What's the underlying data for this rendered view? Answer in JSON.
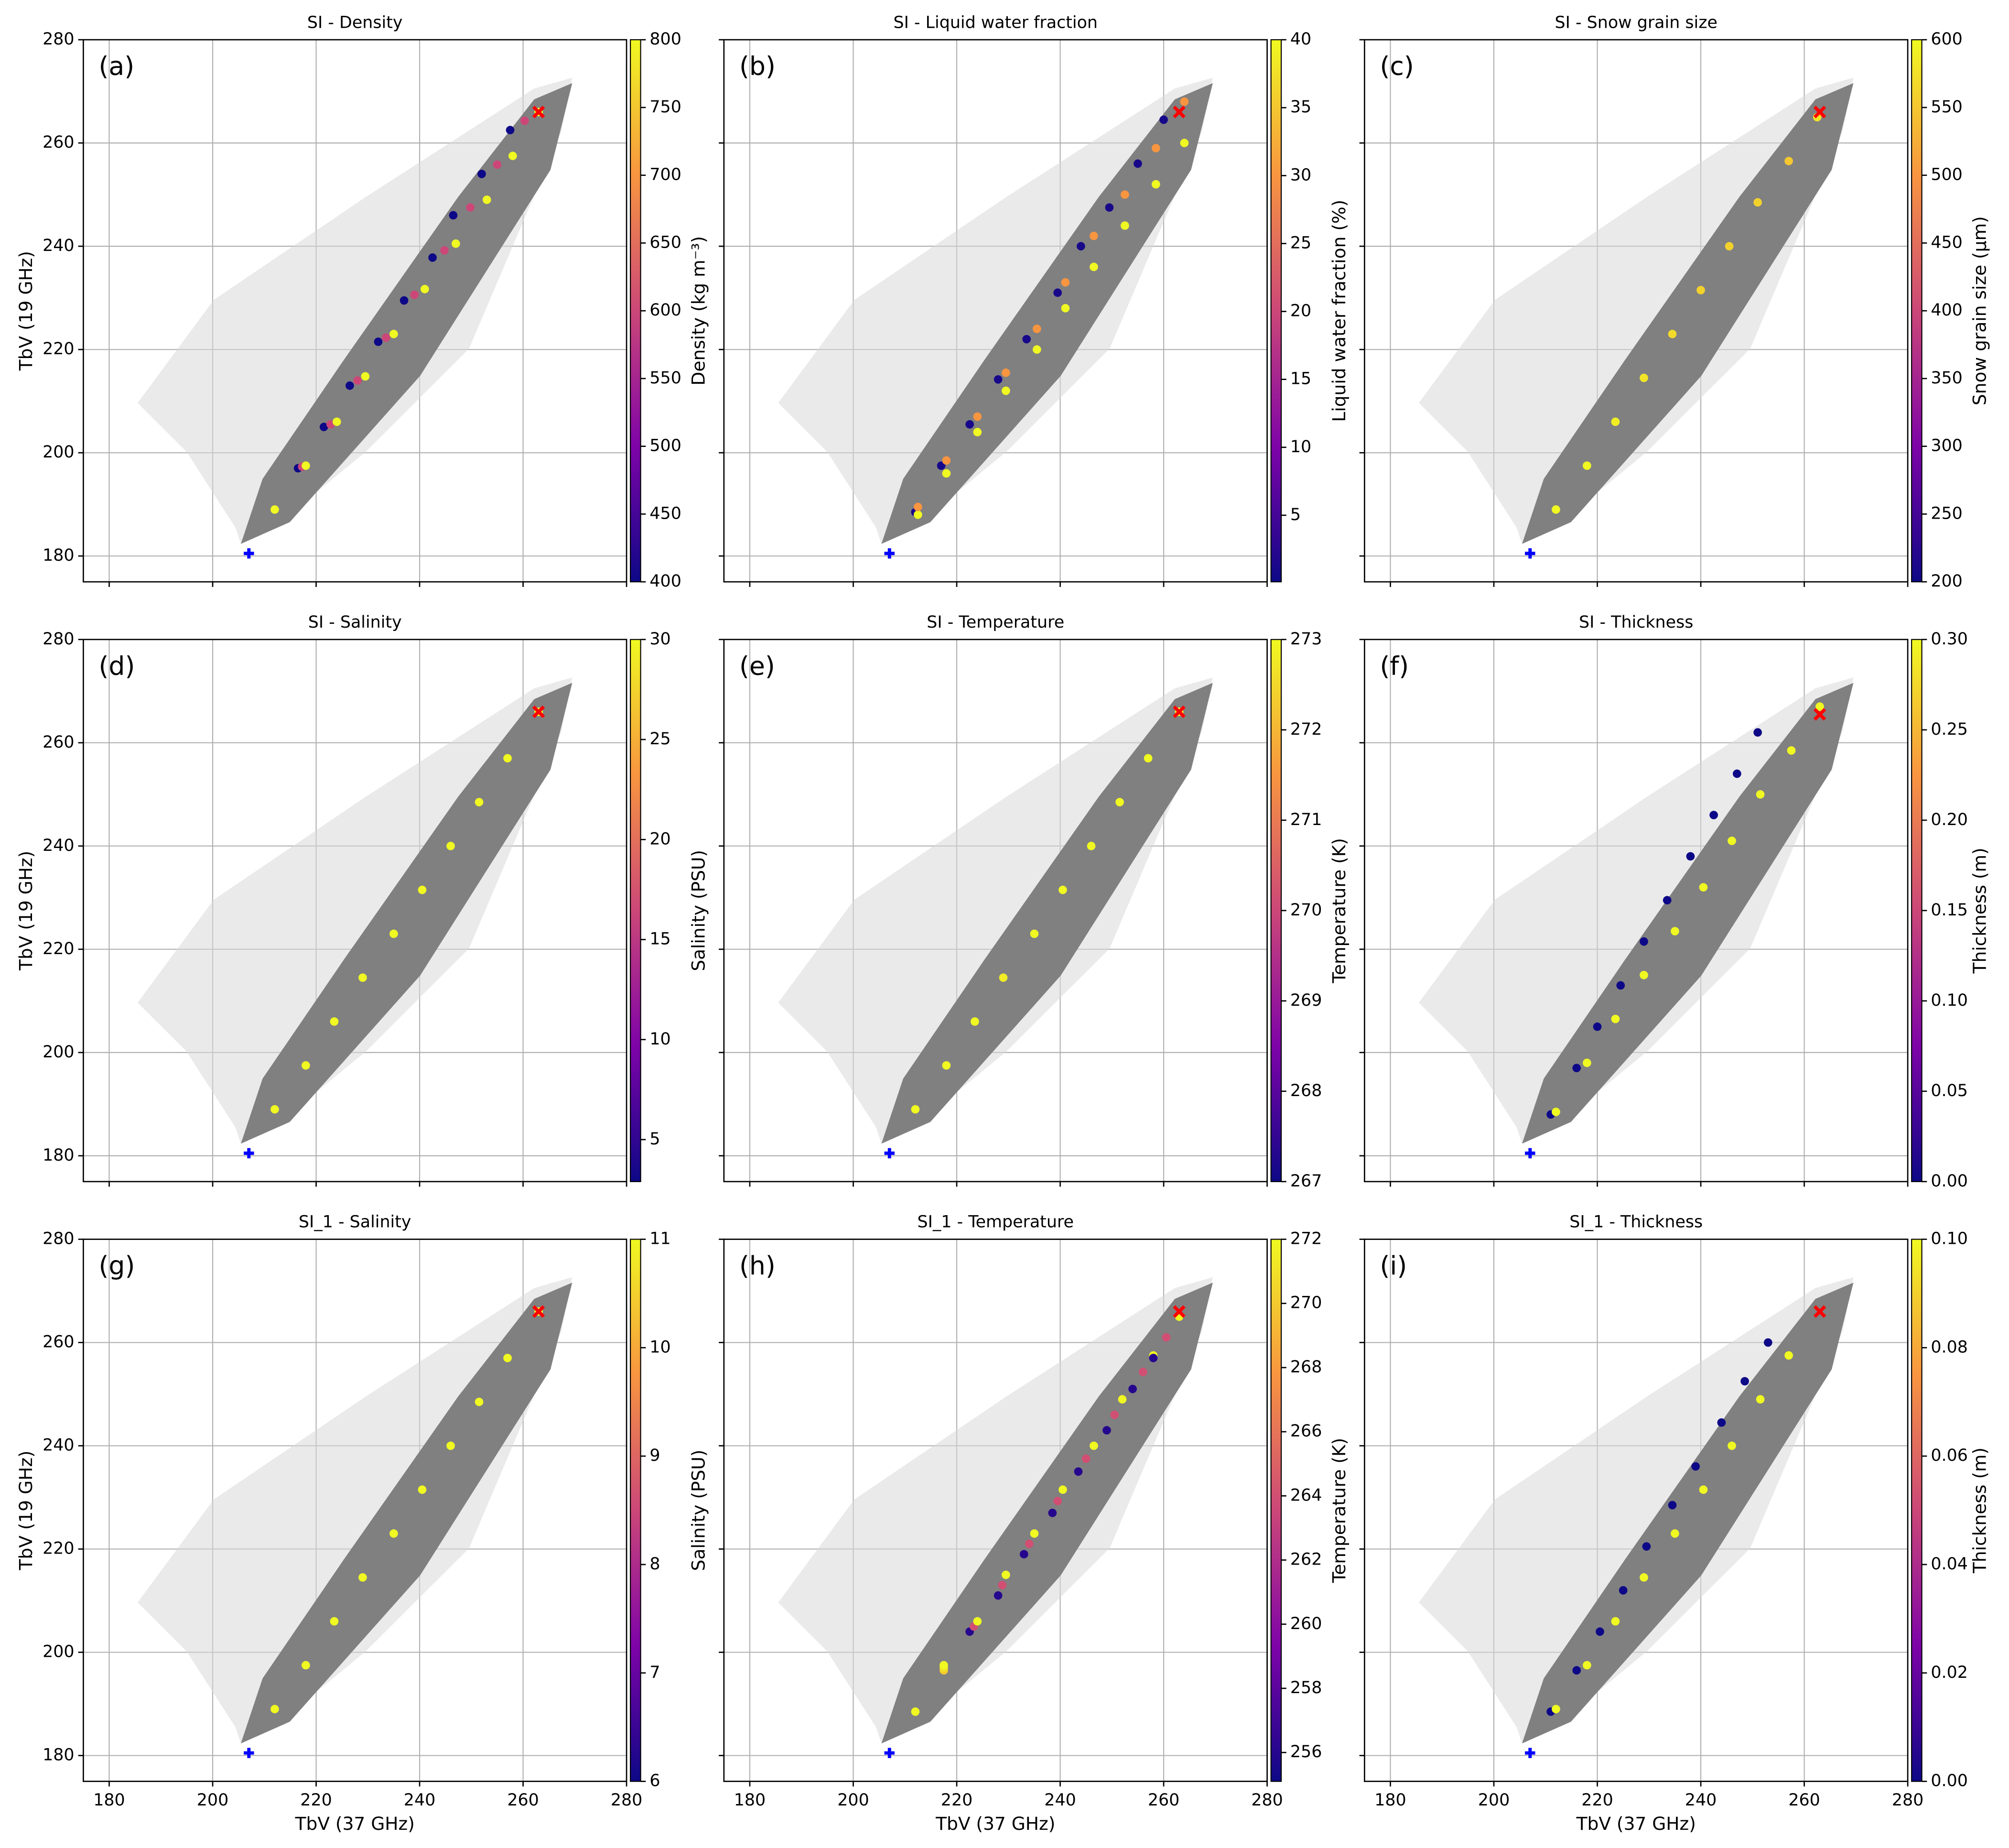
{
  "chart_data": [
    {
      "type": "scatter",
      "title": "SI - Density",
      "panel_label": "(a)",
      "ylabel": "TbV (19 GHz)",
      "xlim": [
        175,
        280
      ],
      "ylim": [
        175,
        280
      ],
      "xticks": [
        180,
        200,
        220,
        240,
        260,
        280
      ],
      "yticks": [
        180,
        200,
        220,
        240,
        260,
        280
      ],
      "xtick_labels": false,
      "ytick_labels": true,
      "grid": true,
      "x": [
        212,
        216.5,
        217.3,
        218,
        221.5,
        222.8,
        224,
        226.5,
        228,
        229.5,
        232,
        233.5,
        235,
        237,
        239,
        241,
        242.5,
        244.8,
        247,
        246.5,
        249.8,
        253,
        252,
        255,
        258,
        257.5,
        260.3,
        263
      ],
      "y": [
        189,
        197,
        197.3,
        197.5,
        205,
        205.5,
        206,
        213,
        214,
        214.8,
        221.5,
        222.3,
        223,
        229.5,
        230.6,
        231.7,
        237.8,
        239.2,
        240.5,
        246,
        247.5,
        249,
        254,
        255.8,
        257.5,
        262.5,
        264.3,
        266
      ],
      "c": [
        800,
        400,
        600,
        800,
        400,
        600,
        800,
        400,
        600,
        800,
        400,
        600,
        800,
        400,
        600,
        800,
        400,
        600,
        800,
        400,
        600,
        800,
        400,
        600,
        800,
        400,
        600,
        800
      ],
      "colorbar": {
        "label": "Density (kg m⁻³)",
        "colormap": "plasma",
        "lim": [
          400,
          800
        ],
        "ticks": [
          400,
          450,
          500,
          550,
          600,
          650,
          700,
          750,
          800
        ]
      },
      "reference_points": [
        {
          "x": 263,
          "y": 266,
          "marker": "x",
          "color": "red"
        },
        {
          "x": 207,
          "y": 180.5,
          "marker": "plus",
          "color": "blue"
        }
      ]
    },
    {
      "type": "scatter",
      "title": "SI - Liquid water fraction",
      "panel_label": "(b)",
      "xlim": [
        175,
        280
      ],
      "ylim": [
        175,
        280
      ],
      "xticks": [
        180,
        200,
        220,
        240,
        260,
        280
      ],
      "yticks": [
        180,
        200,
        220,
        240,
        260,
        280
      ],
      "xtick_labels": false,
      "ytick_labels": false,
      "grid": true,
      "x": [
        212,
        212.5,
        212.5,
        217,
        218,
        218,
        222.5,
        224,
        224,
        228,
        229.5,
        229.5,
        233.5,
        235.5,
        235.5,
        239.5,
        241,
        241,
        244,
        246.5,
        246.5,
        249.5,
        252.5,
        252.5,
        255,
        258.5,
        258.5,
        260,
        264,
        264
      ],
      "y": [
        188.5,
        188,
        189.5,
        197.5,
        196,
        198.5,
        205.5,
        204,
        207,
        214.2,
        212,
        215.5,
        222,
        220,
        224,
        231,
        228,
        233,
        240,
        236,
        242,
        247.5,
        244,
        250,
        256,
        252,
        259,
        264.5,
        260,
        268
      ],
      "c": [
        1,
        40,
        30,
        1,
        40,
        30,
        1,
        40,
        30,
        1,
        40,
        30,
        1,
        40,
        30,
        1,
        40,
        30,
        1,
        40,
        30,
        1,
        40,
        30,
        1,
        40,
        30,
        1,
        40,
        30
      ],
      "colorbar": {
        "label": "Liquid water fraction (%)",
        "colormap": "plasma",
        "lim": [
          0.1,
          40
        ],
        "ticks": [
          5,
          10,
          15,
          20,
          25,
          30,
          35,
          40
        ]
      },
      "reference_points": [
        {
          "x": 263,
          "y": 266,
          "marker": "x",
          "color": "red"
        },
        {
          "x": 207,
          "y": 180.5,
          "marker": "plus",
          "color": "blue"
        }
      ]
    },
    {
      "type": "scatter",
      "title": "SI - Snow grain size",
      "panel_label": "(c)",
      "xlim": [
        175,
        280
      ],
      "ylim": [
        175,
        280
      ],
      "xticks": [
        180,
        200,
        220,
        240,
        260,
        280
      ],
      "yticks": [
        180,
        200,
        220,
        240,
        260,
        280
      ],
      "xtick_labels": false,
      "ytick_labels": false,
      "grid": true,
      "x": [
        212,
        218,
        223.5,
        229,
        234.5,
        240,
        245.5,
        251,
        257,
        262.5
      ],
      "y": [
        189,
        197.5,
        206,
        214.5,
        223,
        231.5,
        240,
        248.5,
        256.5,
        265
      ],
      "c": [
        600,
        600,
        590,
        580,
        570,
        560,
        560,
        560,
        550,
        580
      ],
      "colorbar": {
        "label": "Snow grain size (µm)",
        "colormap": "plasma",
        "lim": [
          200,
          600
        ],
        "ticks": [
          200,
          250,
          300,
          350,
          400,
          450,
          500,
          550,
          600
        ]
      },
      "reference_points": [
        {
          "x": 263,
          "y": 266,
          "marker": "x",
          "color": "red"
        },
        {
          "x": 207,
          "y": 180.5,
          "marker": "plus",
          "color": "blue"
        }
      ]
    },
    {
      "type": "scatter",
      "title": "SI - Salinity",
      "panel_label": "(d)",
      "ylabel": "TbV (19 GHz)",
      "xlim": [
        175,
        280
      ],
      "ylim": [
        175,
        280
      ],
      "xticks": [
        180,
        200,
        220,
        240,
        260,
        280
      ],
      "yticks": [
        180,
        200,
        220,
        240,
        260,
        280
      ],
      "xtick_labels": false,
      "ytick_labels": true,
      "grid": true,
      "x": [
        212,
        218,
        223.5,
        229,
        235,
        240.5,
        246,
        251.5,
        257,
        263
      ],
      "y": [
        189,
        197.5,
        206,
        214.5,
        223,
        231.5,
        240,
        248.5,
        257,
        266
      ],
      "c": [
        30,
        30,
        30,
        30,
        30,
        30,
        30,
        30,
        30,
        30
      ],
      "colorbar": {
        "label": "Salinity (PSU)",
        "colormap": "plasma",
        "lim": [
          2.9,
          30
        ],
        "ticks": [
          5,
          10,
          15,
          20,
          25,
          30
        ]
      },
      "reference_points": [
        {
          "x": 263,
          "y": 266,
          "marker": "x",
          "color": "red"
        },
        {
          "x": 207,
          "y": 180.5,
          "marker": "plus",
          "color": "blue"
        }
      ]
    },
    {
      "type": "scatter",
      "title": "SI - Temperature",
      "panel_label": "(e)",
      "xlim": [
        175,
        280
      ],
      "ylim": [
        175,
        280
      ],
      "xticks": [
        180,
        200,
        220,
        240,
        260,
        280
      ],
      "yticks": [
        180,
        200,
        220,
        240,
        260,
        280
      ],
      "xtick_labels": false,
      "ytick_labels": false,
      "grid": true,
      "x": [
        212,
        218,
        223.5,
        229,
        235,
        240.5,
        246,
        251.5,
        257,
        263
      ],
      "y": [
        189,
        197.5,
        206,
        214.5,
        223,
        231.5,
        240,
        248.5,
        257,
        266
      ],
      "c": [
        273,
        273,
        273,
        272.8,
        273,
        273,
        273,
        273,
        273,
        273
      ],
      "colorbar": {
        "label": "Temperature (K)",
        "colormap": "plasma",
        "lim": [
          267,
          273
        ],
        "ticks": [
          267,
          268,
          269,
          270,
          271,
          272,
          273
        ]
      },
      "reference_points": [
        {
          "x": 263,
          "y": 266,
          "marker": "x",
          "color": "red"
        },
        {
          "x": 207,
          "y": 180.5,
          "marker": "plus",
          "color": "blue"
        }
      ]
    },
    {
      "type": "scatter",
      "title": "SI - Thickness",
      "panel_label": "(f)",
      "xlim": [
        175,
        280
      ],
      "ylim": [
        175,
        280
      ],
      "xticks": [
        180,
        200,
        220,
        240,
        260,
        280
      ],
      "yticks": [
        180,
        200,
        220,
        240,
        260,
        280
      ],
      "xtick_labels": false,
      "ytick_labels": false,
      "grid": true,
      "x": [
        211,
        216,
        220,
        224.5,
        229,
        233.5,
        238,
        242.5,
        247,
        251,
        212,
        218,
        223.5,
        229,
        235,
        240.5,
        246,
        251.5,
        257.5,
        263
      ],
      "y": [
        188,
        197,
        205,
        213,
        221.5,
        229.5,
        238,
        246,
        254,
        262,
        188.5,
        198,
        206.5,
        215,
        223.5,
        232,
        241,
        250,
        258.5,
        267
      ],
      "c": [
        0,
        0,
        0,
        0,
        0,
        0,
        0,
        0,
        0,
        0,
        0.3,
        0.3,
        0.3,
        0.3,
        0.3,
        0.3,
        0.3,
        0.3,
        0.3,
        0.3
      ],
      "colorbar": {
        "label": "Thickness (m)",
        "colormap": "plasma",
        "lim": [
          0,
          0.3
        ],
        "ticks": [
          {
            "value": 0,
            "label": "0.00"
          },
          {
            "value": 0.05,
            "label": "0.05"
          },
          {
            "value": 0.1,
            "label": "0.10"
          },
          {
            "value": 0.15,
            "label": "0.15"
          },
          {
            "value": 0.2,
            "label": "0.20"
          },
          {
            "value": 0.25,
            "label": "0.25"
          },
          {
            "value": 0.3,
            "label": "0.30"
          }
        ]
      },
      "reference_points": [
        {
          "x": 263,
          "y": 265.5,
          "marker": "x",
          "color": "red"
        },
        {
          "x": 207,
          "y": 180.5,
          "marker": "plus",
          "color": "blue"
        }
      ]
    },
    {
      "type": "scatter",
      "title": "SI_1 - Salinity",
      "panel_label": "(g)",
      "xlabel": "TbV (37 GHz)",
      "ylabel": "TbV (19 GHz)",
      "xlim": [
        175,
        280
      ],
      "ylim": [
        175,
        280
      ],
      "xticks": [
        180,
        200,
        220,
        240,
        260,
        280
      ],
      "yticks": [
        180,
        200,
        220,
        240,
        260,
        280
      ],
      "xtick_labels": true,
      "ytick_labels": true,
      "grid": true,
      "x": [
        212,
        218,
        223.5,
        229,
        235,
        240.5,
        246,
        251.5,
        257,
        263
      ],
      "y": [
        189,
        197.5,
        206,
        214.5,
        223,
        231.5,
        240,
        248.5,
        257,
        266
      ],
      "c": [
        11,
        11,
        11,
        11,
        11,
        11,
        11,
        11,
        11,
        11
      ],
      "colorbar": {
        "label": "Salinity (PSU)",
        "colormap": "plasma",
        "lim": [
          6,
          11
        ],
        "ticks": [
          6,
          7,
          8,
          9,
          10,
          11
        ]
      },
      "reference_points": [
        {
          "x": 263,
          "y": 266,
          "marker": "x",
          "color": "red"
        },
        {
          "x": 207,
          "y": 180.5,
          "marker": "plus",
          "color": "blue"
        }
      ]
    },
    {
      "type": "scatter",
      "title": "SI_1 - Temperature",
      "panel_label": "(h)",
      "xlabel": "TbV (37 GHz)",
      "xlim": [
        175,
        280
      ],
      "ylim": [
        175,
        280
      ],
      "xticks": [
        180,
        200,
        220,
        240,
        260,
        280
      ],
      "yticks": [
        180,
        200,
        220,
        240,
        260,
        280
      ],
      "xtick_labels": true,
      "ytick_labels": false,
      "grid": true,
      "x": [
        212,
        217.5,
        217.5,
        217.5,
        222.5,
        223.3,
        224,
        228,
        228.8,
        229.5,
        233,
        234,
        235,
        238.5,
        239.5,
        240.5,
        243.5,
        245,
        246.5,
        249,
        250.5,
        252,
        254,
        256,
        258,
        258,
        260.5,
        263
      ],
      "y": [
        188.5,
        196.5,
        197,
        197.5,
        204,
        205,
        206,
        211,
        213,
        215,
        219,
        221,
        223,
        227,
        229.3,
        231.5,
        235,
        237.5,
        240,
        243,
        246,
        249,
        251,
        254.3,
        257.5,
        257,
        261,
        265
      ],
      "c": [
        272,
        270,
        271,
        272,
        256,
        264,
        272,
        256,
        264,
        272,
        256,
        264,
        272,
        256,
        264,
        272,
        256,
        264,
        272,
        256,
        264,
        272,
        256,
        264,
        272,
        256,
        264,
        272
      ],
      "colorbar": {
        "label": "Temperature (K)",
        "colormap": "plasma",
        "lim": [
          255.1,
          272
        ],
        "ticks": [
          256,
          258,
          260,
          262,
          264,
          266,
          268,
          270,
          272
        ]
      },
      "reference_points": [
        {
          "x": 263,
          "y": 266,
          "marker": "x",
          "color": "red"
        },
        {
          "x": 207,
          "y": 180.5,
          "marker": "plus",
          "color": "blue"
        }
      ]
    },
    {
      "type": "scatter",
      "title": "SI_1 - Thickness",
      "panel_label": "(i)",
      "xlabel": "TbV (37 GHz)",
      "xlim": [
        175,
        280
      ],
      "ylim": [
        175,
        280
      ],
      "xticks": [
        180,
        200,
        220,
        240,
        260,
        280
      ],
      "yticks": [
        180,
        200,
        220,
        240,
        260,
        280
      ],
      "xtick_labels": true,
      "ytick_labels": false,
      "grid": true,
      "x": [
        211,
        216,
        220.5,
        225,
        229.5,
        234.5,
        239,
        244,
        248.5,
        253,
        212,
        218,
        223.5,
        229,
        235,
        240.5,
        246,
        251.5,
        257
      ],
      "y": [
        188.5,
        196.5,
        204,
        212,
        220.5,
        228.5,
        236,
        244.5,
        252.5,
        260,
        189,
        197.5,
        206,
        214.5,
        223,
        231.5,
        240,
        249,
        257.5
      ],
      "c": [
        0,
        0,
        0,
        0,
        0,
        0,
        0,
        0,
        0,
        0,
        0.1,
        0.1,
        0.1,
        0.1,
        0.1,
        0.1,
        0.1,
        0.1,
        0.1
      ],
      "colorbar": {
        "label": "Thickness (m)",
        "colormap": "plasma",
        "lim": [
          0,
          0.1
        ],
        "ticks": [
          {
            "value": 0,
            "label": "0.00"
          },
          {
            "value": 0.02,
            "label": "0.02"
          },
          {
            "value": 0.04,
            "label": "0.04"
          },
          {
            "value": 0.06,
            "label": "0.06"
          },
          {
            "value": 0.08,
            "label": "0.08"
          },
          {
            "value": 0.1,
            "label": "0.10"
          }
        ]
      },
      "reference_points": [
        {
          "x": 263,
          "y": 266,
          "marker": "x",
          "color": "red"
        },
        {
          "x": 207,
          "y": 180.5,
          "marker": "plus",
          "color": "blue"
        }
      ]
    }
  ]
}
